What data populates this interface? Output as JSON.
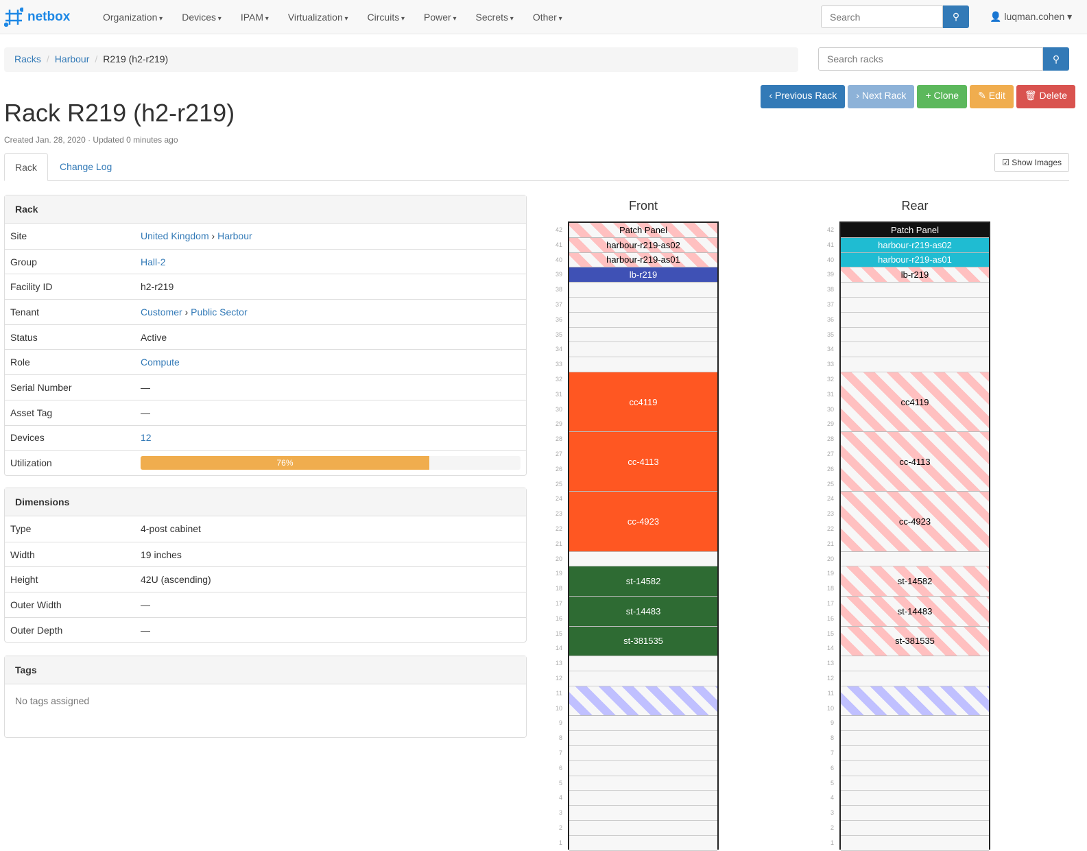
{
  "nav": {
    "brand": "netbox",
    "menu": [
      "Organization",
      "Devices",
      "IPAM",
      "Virtualization",
      "Circuits",
      "Power",
      "Secrets",
      "Other"
    ],
    "search_placeholder": "Search",
    "user": "luqman.cohen"
  },
  "breadcrumb": [
    "Racks",
    "Harbour",
    "R219 (h2-r219)"
  ],
  "rack_search_placeholder": "Search racks",
  "buttons": [
    {
      "label": "Previous Rack",
      "color": "#337ab7",
      "icon": "chevron-left-icon",
      "glyph": "‹ "
    },
    {
      "label": "Next Rack",
      "color": "#8db2d8",
      "icon": "chevron-right-icon",
      "glyph": "› "
    },
    {
      "label": "Clone",
      "color": "#5cb85c",
      "icon": "plus-icon",
      "glyph": "+ "
    },
    {
      "label": "Edit",
      "color": "#f0ad4e",
      "icon": "pencil-icon",
      "glyph": "✎ "
    },
    {
      "label": "Delete",
      "color": "#d9534f",
      "icon": "trash-icon",
      "glyph": "🗑 "
    }
  ],
  "title": "Rack R219 (h2-r219)",
  "meta": "Created Jan. 28, 2020 · Updated 0 minutes ago",
  "tabs": [
    "Rack",
    "Change Log"
  ],
  "show_images": "Show Images",
  "rack_panel": {
    "heading": "Rack",
    "rows": [
      {
        "k": "Site",
        "v": [
          "United Kingdom",
          "Harbour"
        ],
        "link": true
      },
      {
        "k": "Group",
        "v": [
          "Hall-2"
        ],
        "link": true
      },
      {
        "k": "Facility ID",
        "v": [
          "h2-r219"
        ]
      },
      {
        "k": "Tenant",
        "v": [
          "Customer",
          "Public Sector"
        ],
        "link": true
      },
      {
        "k": "Status",
        "v": [
          "Active"
        ]
      },
      {
        "k": "Role",
        "v": [
          "Compute"
        ],
        "link": true
      },
      {
        "k": "Serial Number",
        "v": [
          "—"
        ]
      },
      {
        "k": "Asset Tag",
        "v": [
          "—"
        ]
      },
      {
        "k": "Devices",
        "v": [
          "12"
        ],
        "link": true
      }
    ],
    "utilization_label": "Utilization",
    "utilization": 76,
    "utilization_text": "76%"
  },
  "dimensions": {
    "heading": "Dimensions",
    "rows": [
      {
        "k": "Type",
        "v": "4-post cabinet"
      },
      {
        "k": "Width",
        "v": "19 inches"
      },
      {
        "k": "Height",
        "v": "42U (ascending)"
      },
      {
        "k": "Outer Width",
        "v": "—"
      },
      {
        "k": "Outer Depth",
        "v": "—"
      }
    ]
  },
  "tags": {
    "heading": "Tags",
    "empty": "No tags assigned"
  },
  "elevations": [
    {
      "title": "Front",
      "devices": [
        {
          "name": "Patch Panel",
          "top": 42,
          "u": 1,
          "style": "stripe"
        },
        {
          "name": "harbour-r219-as02",
          "top": 41,
          "u": 1,
          "style": "stripe"
        },
        {
          "name": "harbour-r219-as01",
          "top": 40,
          "u": 1,
          "style": "stripe"
        },
        {
          "name": "lb-r219",
          "top": 39,
          "u": 1,
          "color": "#3f51b5"
        },
        {
          "name": "cc4119",
          "top": 32,
          "u": 4,
          "color": "#ff5722"
        },
        {
          "name": "cc-4113",
          "top": 28,
          "u": 4,
          "color": "#ff5722"
        },
        {
          "name": "cc-4923",
          "top": 24,
          "u": 4,
          "color": "#ff5722"
        },
        {
          "name": "st-14582",
          "top": 19,
          "u": 2,
          "color": "#2e6b33"
        },
        {
          "name": "st-14483",
          "top": 17,
          "u": 2,
          "color": "#2e6b33"
        },
        {
          "name": "st-381535",
          "top": 15,
          "u": 2,
          "color": "#2e6b33"
        },
        {
          "name": "",
          "top": 11,
          "u": 2,
          "style": "res"
        }
      ]
    },
    {
      "title": "Rear",
      "devices": [
        {
          "name": "Patch Panel",
          "top": 42,
          "u": 1,
          "color": "#111111"
        },
        {
          "name": "harbour-r219-as02",
          "top": 41,
          "u": 1,
          "color": "#1fbcd2"
        },
        {
          "name": "harbour-r219-as01",
          "top": 40,
          "u": 1,
          "color": "#1fbcd2"
        },
        {
          "name": "lb-r219",
          "top": 39,
          "u": 1,
          "style": "stripe"
        },
        {
          "name": "cc4119",
          "top": 32,
          "u": 4,
          "style": "stripe"
        },
        {
          "name": "cc-4113",
          "top": 28,
          "u": 4,
          "style": "stripe"
        },
        {
          "name": "cc-4923",
          "top": 24,
          "u": 4,
          "style": "stripe"
        },
        {
          "name": "st-14582",
          "top": 19,
          "u": 2,
          "style": "stripe"
        },
        {
          "name": "st-14483",
          "top": 17,
          "u": 2,
          "style": "stripe"
        },
        {
          "name": "st-381535",
          "top": 15,
          "u": 2,
          "style": "stripe"
        },
        {
          "name": "",
          "top": 11,
          "u": 2,
          "style": "res"
        }
      ]
    }
  ]
}
